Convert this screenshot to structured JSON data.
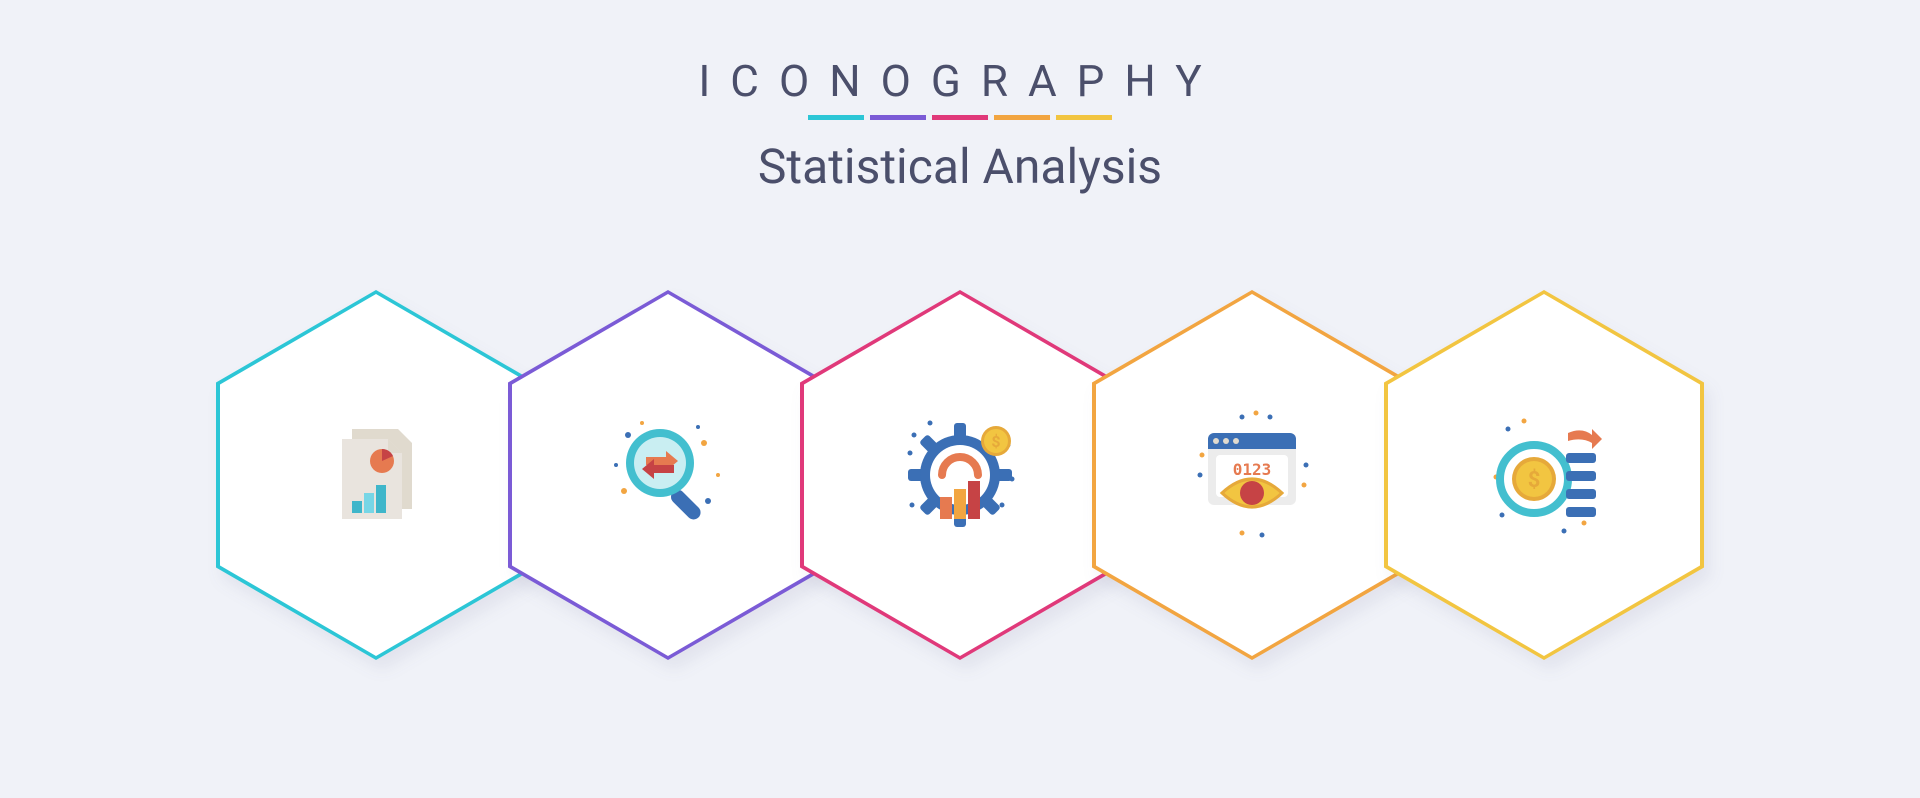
{
  "header": {
    "top_title": "ICONOGRAPHY",
    "subtitle": "Statistical Analysis",
    "palette": [
      "#2cc6d6",
      "#7b5bd6",
      "#e0397a",
      "#f2a541",
      "#f2c541"
    ]
  },
  "page": {
    "background_color": "#f0f2f8",
    "text_color": "#4b4f6b"
  },
  "hex": {
    "fill_color": "#ffffff",
    "border_width": 4,
    "shadow": "6px 10px 8px rgba(60,70,110,0.08)"
  },
  "icons": [
    {
      "name": "report-document-icon",
      "accent": "#2cc6d6",
      "palette": {
        "page": "#e9e4de",
        "page2": "#e0dace",
        "bar1": "#3fb6ca",
        "bar2": "#77d6e6",
        "dot": "#c64345",
        "ring": "#e67a50"
      }
    },
    {
      "name": "search-transfer-icon",
      "accent": "#7b5bd6",
      "palette": {
        "glass": "#43bfcf",
        "glass_inner": "#c9eef2",
        "handle": "#3b6fb5",
        "arrow1": "#e67a50",
        "arrow2": "#c64345",
        "dot_a": "#3b6fb5",
        "dot_b": "#f2a541"
      }
    },
    {
      "name": "business-gear-icon",
      "accent": "#e0397a",
      "palette": {
        "gear": "#3b6fb5",
        "inner": "#ffffff",
        "gauge": "#e67a50",
        "bar1": "#e67a50",
        "bar2": "#f2a541",
        "bar3": "#c64345",
        "coin": "#f2c541",
        "coin_ring": "#e6a93a",
        "dollar": "#e6a93a",
        "dot": "#3b6fb5"
      }
    },
    {
      "name": "web-view-counter-icon",
      "accent": "#f2a541",
      "palette": {
        "window": "#ececec",
        "header": "#3b6fb5",
        "btn": "#e0dace",
        "panel": "#ffffff",
        "eye_outer": "#f2c541",
        "eye_inner": "#c64345",
        "eye_stroke": "#e6a93a",
        "digits": "#e67a50",
        "dot": "#3b6fb5",
        "dot2": "#f2a541"
      },
      "digits": "0123"
    },
    {
      "name": "money-flow-icon",
      "accent": "#f2c541",
      "palette": {
        "ring": "#43bfcf",
        "coin": "#f2c541",
        "coin_ring": "#e6a93a",
        "dollar": "#e6a93a",
        "bar": "#3b6fb5",
        "arrow": "#e67a50",
        "dot": "#3b6fb5",
        "dot2": "#f2a541"
      }
    }
  ]
}
